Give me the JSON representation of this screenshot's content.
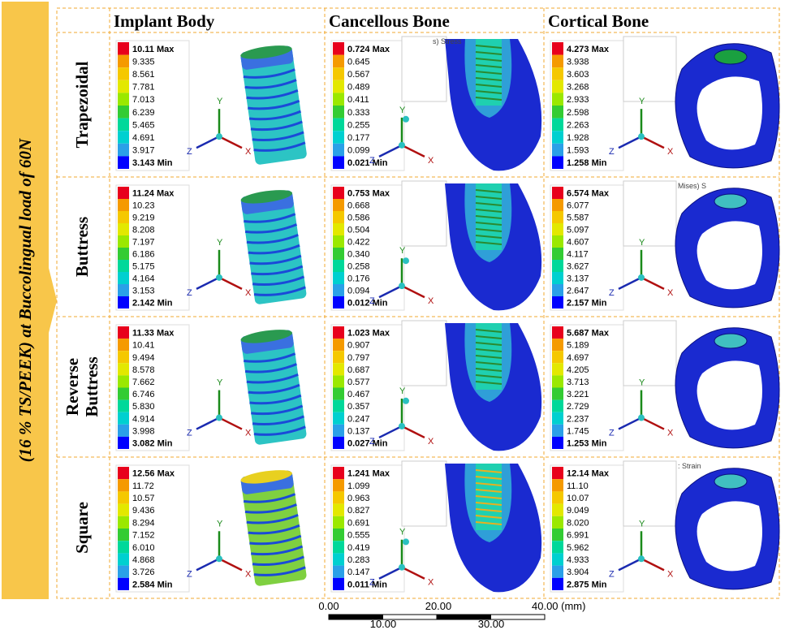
{
  "side_label": "(16 % TS/PEEK) at Buccolingual load of 60N",
  "columns": [
    "Implant Body",
    "Cancellous Bone",
    "Cortical Bone"
  ],
  "axes": {
    "x": "X",
    "y": "Y",
    "z": "Z"
  },
  "legend_colors": [
    "#e8001c",
    "#f59a00",
    "#f5c800",
    "#e3e800",
    "#9be800",
    "#33cc33",
    "#00d89a",
    "#00d0d0",
    "#2aa0e8",
    "#0000ff"
  ],
  "rows": [
    {
      "label_lines": [
        "Trapezoidal"
      ],
      "legends": [
        [
          "10.11 Max",
          "9.335",
          "8.561",
          "7.781",
          "7.013",
          "6.239",
          "5.465",
          "4.691",
          "3.917",
          "3.143 Min"
        ],
        [
          "0.724 Max",
          "0.645",
          "0.567",
          "0.489",
          "0.411",
          "0.333",
          "0.255",
          "0.177",
          "0.099",
          "0.021 Min"
        ],
        [
          "4.273 Max",
          "3.938",
          "3.603",
          "3.268",
          "2.933",
          "2.598",
          "2.263",
          "1.928",
          "1.593",
          "1.258 Min"
        ]
      ]
    },
    {
      "label_lines": [
        "Buttress"
      ],
      "legends": [
        [
          "11.24 Max",
          "10.23",
          "9.219",
          "8.208",
          "7.197",
          "6.186",
          "5.175",
          "4.164",
          "3.153",
          "2.142 Min"
        ],
        [
          "0.753 Max",
          "0.668",
          "0.586",
          "0.504",
          "0.422",
          "0.340",
          "0.258",
          "0.176",
          "0.094",
          "0.012 Min"
        ],
        [
          "6.574 Max",
          "6.077",
          "5.587",
          "5.097",
          "4.607",
          "4.117",
          "3.627",
          "3.137",
          "2.647",
          "2.157 Min"
        ]
      ]
    },
    {
      "label_lines": [
        "Reverse",
        "Buttress"
      ],
      "legends": [
        [
          "11.33 Max",
          "10.41",
          "9.494",
          "8.578",
          "7.662",
          "6.746",
          "5.830",
          "4.914",
          "3.998",
          "3.082 Min"
        ],
        [
          "1.023 Max",
          "0.907",
          "0.797",
          "0.687",
          "0.577",
          "0.467",
          "0.357",
          "0.247",
          "0.137",
          "0.027 Min"
        ],
        [
          "5.687 Max",
          "5.189",
          "4.697",
          "4.205",
          "3.713",
          "3.221",
          "2.729",
          "2.237",
          "1.745",
          "1.253 Min"
        ]
      ]
    },
    {
      "label_lines": [
        "Square"
      ],
      "legends": [
        [
          "12.56 Max",
          "11.72",
          "10.57",
          "9.436",
          "8.294",
          "7.152",
          "6.010",
          "4.868",
          "3.726",
          "2.584 Min"
        ],
        [
          "1.241 Max",
          "1.099",
          "0.963",
          "0.827",
          "0.691",
          "0.555",
          "0.419",
          "0.283",
          "0.147",
          "0.011 Min"
        ],
        [
          "12.14 Max",
          "11.10",
          "10.07",
          "9.049",
          "8.020",
          "6.991",
          "5.962",
          "4.933",
          "3.904",
          "2.875 Min"
        ]
      ]
    }
  ],
  "fragments": [
    {
      "row": 0,
      "col": 1,
      "text": "s) Stress"
    },
    {
      "row": 1,
      "col": 2,
      "text": "Mises) S"
    },
    {
      "row": 3,
      "col": 2,
      "text": ": Strain"
    }
  ],
  "scale_bar": {
    "top": [
      "0.00",
      "20.00",
      "40.00 (mm)"
    ],
    "bottom": [
      "10.00",
      "30.00"
    ]
  }
}
